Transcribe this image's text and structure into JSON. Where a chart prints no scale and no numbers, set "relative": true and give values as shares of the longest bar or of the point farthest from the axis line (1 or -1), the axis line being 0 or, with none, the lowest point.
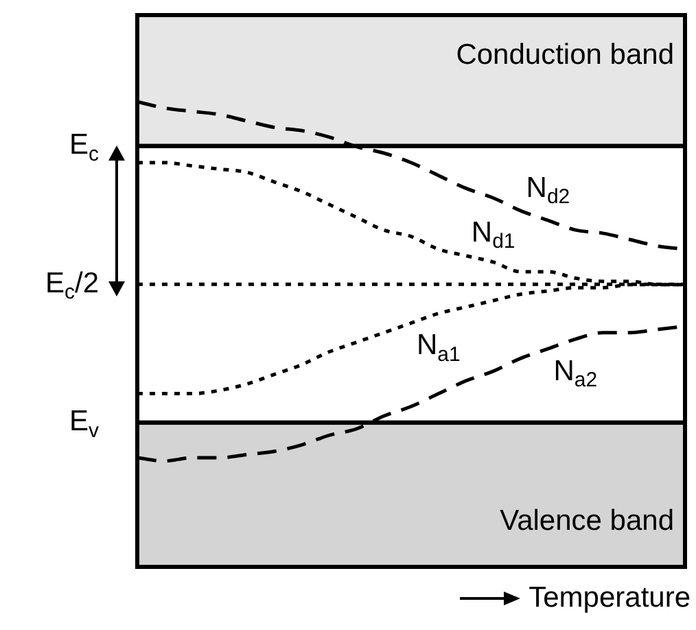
{
  "chart_data": {
    "type": "line",
    "xlabel": "Temperature",
    "categories": [
      null,
      null,
      null,
      null,
      null,
      null,
      null,
      null,
      null,
      null,
      null,
      null,
      null,
      null,
      null,
      null,
      null,
      null,
      null,
      null,
      null
    ],
    "relative": true,
    "series": [
      {
        "name": "N$_{d2}$",
        "color": "#000000",
        "line_style": "dashed",
        "values": [
          1.0,
          0.98,
          0.97,
          0.96,
          0.94,
          0.92,
          0.91,
          0.89,
          0.86,
          0.84,
          0.81,
          0.77,
          0.73,
          0.7,
          0.66,
          0.63,
          0.6,
          0.59,
          0.57,
          0.55,
          0.54
        ]
      },
      {
        "name": "N$_{d1}$",
        "color": "#000000",
        "line_style": "dotted",
        "values": [
          0.81,
          0.81,
          0.8,
          0.79,
          0.78,
          0.75,
          0.72,
          0.68,
          0.64,
          0.6,
          0.58,
          0.54,
          0.52,
          0.5,
          0.47,
          0.47,
          0.45,
          0.44,
          0.44,
          0.43,
          0.43
        ]
      },
      {
        "name": "N$_{a1}$",
        "color": "#000000",
        "line_style": "dotted",
        "values": [
          0.09,
          0.09,
          0.09,
          0.1,
          0.12,
          0.15,
          0.18,
          0.22,
          0.25,
          0.28,
          0.31,
          0.34,
          0.36,
          0.38,
          0.4,
          0.41,
          0.42,
          0.42,
          0.43,
          0.43,
          0.43
        ]
      },
      {
        "name": "N$_{a2}$",
        "color": "#000000",
        "line_style": "dashed",
        "values": [
          -0.11,
          -0.12,
          -0.11,
          -0.11,
          -0.1,
          -0.09,
          -0.07,
          -0.04,
          -0.02,
          0.02,
          0.05,
          0.09,
          0.13,
          0.16,
          0.2,
          0.23,
          0.26,
          0.28,
          0.28,
          0.29,
          0.3
        ]
      }
    ],
    "ref_lines": [
      {
        "axis": "y",
        "value": 0.862,
        "label": "E$_{c}$",
        "line_style": "solid"
      },
      {
        "axis": "y",
        "value": 0.431,
        "label": "E$_{c}$/2",
        "line_style": "dotted"
      },
      {
        "axis": "y",
        "value": 0,
        "label": "E$_{v}$",
        "line_style": "solid"
      }
    ],
    "bands": [
      {
        "axis": "y",
        "from": 0.862,
        "to": 1.27,
        "label": "Conduction band",
        "color": "#e6e6e6"
      },
      {
        "axis": "y",
        "from": -0.45,
        "to": 0,
        "label": "Valence band",
        "color": "#d4d4d4"
      }
    ],
    "grid": false,
    "legend": false,
    "marker": "none"
  }
}
